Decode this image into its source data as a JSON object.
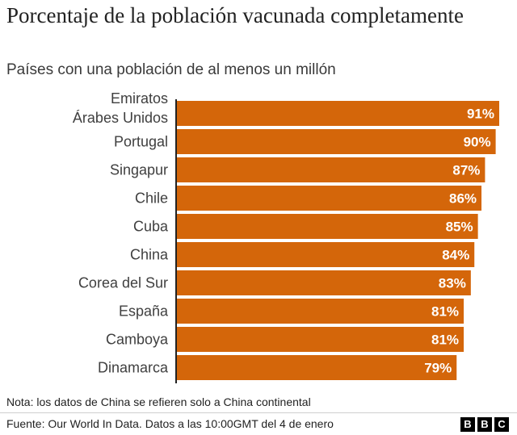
{
  "title": "Porcentaje de la población vacunada completamente",
  "subtitle": "Países con una población de al menos un millón",
  "note": "Nota: los datos de China se refieren solo a China continental",
  "source": "Fuente: Our World In Data. Datos a las 10:00GMT del 4 de enero",
  "logo": [
    "B",
    "B",
    "C"
  ],
  "colors": {
    "bar": "#d4660a",
    "axis": "#222222"
  },
  "chart_data": {
    "type": "bar",
    "orientation": "horizontal",
    "title": "Porcentaje de la población vacunada completamente",
    "subtitle": "Países con una población de al menos un millón",
    "categories": [
      [
        "Emiratos",
        "Árabes Unidos"
      ],
      [
        "Portugal"
      ],
      [
        "Singapur"
      ],
      [
        "Chile"
      ],
      [
        "Cuba"
      ],
      [
        "China"
      ],
      [
        "Corea del Sur"
      ],
      [
        "España"
      ],
      [
        "Camboya"
      ],
      [
        "Dinamarca"
      ]
    ],
    "values": [
      91,
      90,
      87,
      86,
      85,
      84,
      83,
      81,
      81,
      79
    ],
    "value_labels": [
      "91%",
      "90%",
      "87%",
      "86%",
      "85%",
      "84%",
      "83%",
      "81%",
      "81%",
      "79%"
    ],
    "xlim": [
      0,
      91
    ],
    "unit": "%",
    "grid": false,
    "legend": "none"
  }
}
